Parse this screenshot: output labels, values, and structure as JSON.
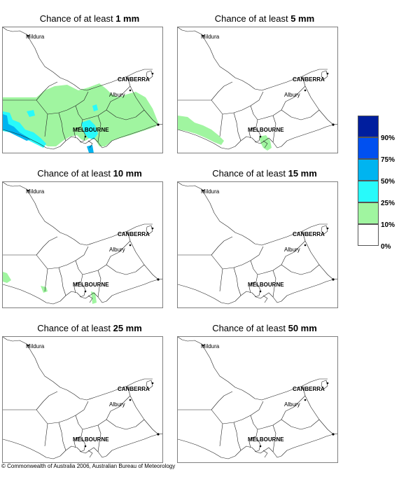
{
  "panels": [
    {
      "title_prefix": "Chance of at least",
      "threshold": "1 mm"
    },
    {
      "title_prefix": "Chance of at least",
      "threshold": "5 mm"
    },
    {
      "title_prefix": "Chance of at least",
      "threshold": "10 mm"
    },
    {
      "title_prefix": "Chance of at least",
      "threshold": "15 mm"
    },
    {
      "title_prefix": "Chance of at least",
      "threshold": "25 mm"
    },
    {
      "title_prefix": "Chance of at least",
      "threshold": "50 mm"
    }
  ],
  "cities": {
    "mildura": "Mildura",
    "canberra": "CANBERRA",
    "albury": "Albury",
    "melbourne": "MELBOURNE"
  },
  "legend": {
    "labels": [
      "90%",
      "75%",
      "50%",
      "25%",
      "10%",
      "0%"
    ],
    "colors": [
      "#001e9e",
      "#0050f0",
      "#00b4f0",
      "#28fafa",
      "#a0f5a0",
      "#ffffff"
    ]
  },
  "copyright": "© Commonwealth of Australia 2006, Australian Bureau of Meteorology"
}
